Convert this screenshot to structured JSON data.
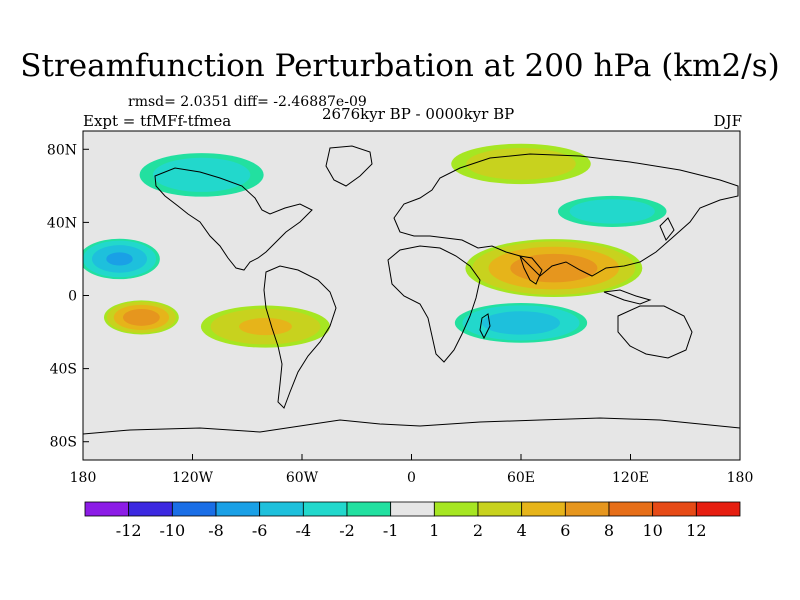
{
  "title": "Streamfunction Perturbation at 200 hPa (km2/s)",
  "stats": "rmsd= 2.0351 diff= -2.46887e-09",
  "experiment": "Expt = tfMFf-tfmea",
  "period": "2676kyr BP - 0000kyr BP",
  "season": "DJF",
  "chart_data": {
    "type": "heatmap",
    "projection": "cylindrical-equidistant",
    "title": "Streamfunction Perturbation at 200 hPa (km2/s)",
    "units": "km2/s",
    "lon_range": [
      -180,
      180
    ],
    "lat_range": [
      -90,
      90
    ],
    "x_ticks": [
      {
        "value": -180,
        "label": "180"
      },
      {
        "value": -120,
        "label": "120W"
      },
      {
        "value": -60,
        "label": "60W"
      },
      {
        "value": 0,
        "label": "0"
      },
      {
        "value": 60,
        "label": "60E"
      },
      {
        "value": 120,
        "label": "120E"
      },
      {
        "value": 180,
        "label": "180"
      }
    ],
    "y_ticks": [
      {
        "value": 80,
        "label": "80N"
      },
      {
        "value": 40,
        "label": "40N"
      },
      {
        "value": 0,
        "label": "0"
      },
      {
        "value": -40,
        "label": "40S"
      },
      {
        "value": -80,
        "label": "80S"
      }
    ],
    "colorbar": {
      "levels": [
        -12,
        -10,
        -8,
        -6,
        -4,
        -2,
        -1,
        1,
        2,
        4,
        6,
        8,
        10,
        12
      ],
      "level_labels": [
        "-12",
        "-10",
        "-8",
        "-6",
        "-4",
        "-2",
        "-1",
        "1",
        "2",
        "4",
        "6",
        "8",
        "10",
        "12"
      ],
      "colors": [
        "#8c1ce6",
        "#3c28e0",
        "#1a6ee6",
        "#1aa0e6",
        "#1ec0dc",
        "#22d8cc",
        "#22e0a0",
        "#e6e6e6",
        "#a6e622",
        "#c8d21e",
        "#e6b41a",
        "#e6961e",
        "#e66e18",
        "#e64a16",
        "#e61e10"
      ]
    },
    "features": [
      {
        "name": "tropical-asia-high",
        "lon": 78,
        "lat": 15,
        "rx": 52,
        "ry": 17,
        "value": 7
      },
      {
        "name": "south-pacific-high",
        "lon": -148,
        "lat": -12,
        "rx": 22,
        "ry": 10,
        "value": 7
      },
      {
        "name": "south-america-high",
        "lon": -80,
        "lat": -17,
        "rx": 40,
        "ry": 13,
        "value": 4
      },
      {
        "name": "south-indian-low",
        "lon": 60,
        "lat": -15,
        "rx": 40,
        "ry": 12,
        "value": -5
      },
      {
        "name": "north-pacific-low",
        "lon": -160,
        "lat": 20,
        "rx": 24,
        "ry": 12,
        "value": -6
      },
      {
        "name": "arctic-high",
        "lon": 60,
        "lat": 72,
        "rx": 45,
        "ry": 13,
        "value": 3
      },
      {
        "name": "north-america-low",
        "lon": -115,
        "lat": 66,
        "rx": 40,
        "ry": 14,
        "value": -3
      },
      {
        "name": "east-asia-low",
        "lon": 110,
        "lat": 46,
        "rx": 35,
        "ry": 10,
        "value": -3
      }
    ]
  }
}
